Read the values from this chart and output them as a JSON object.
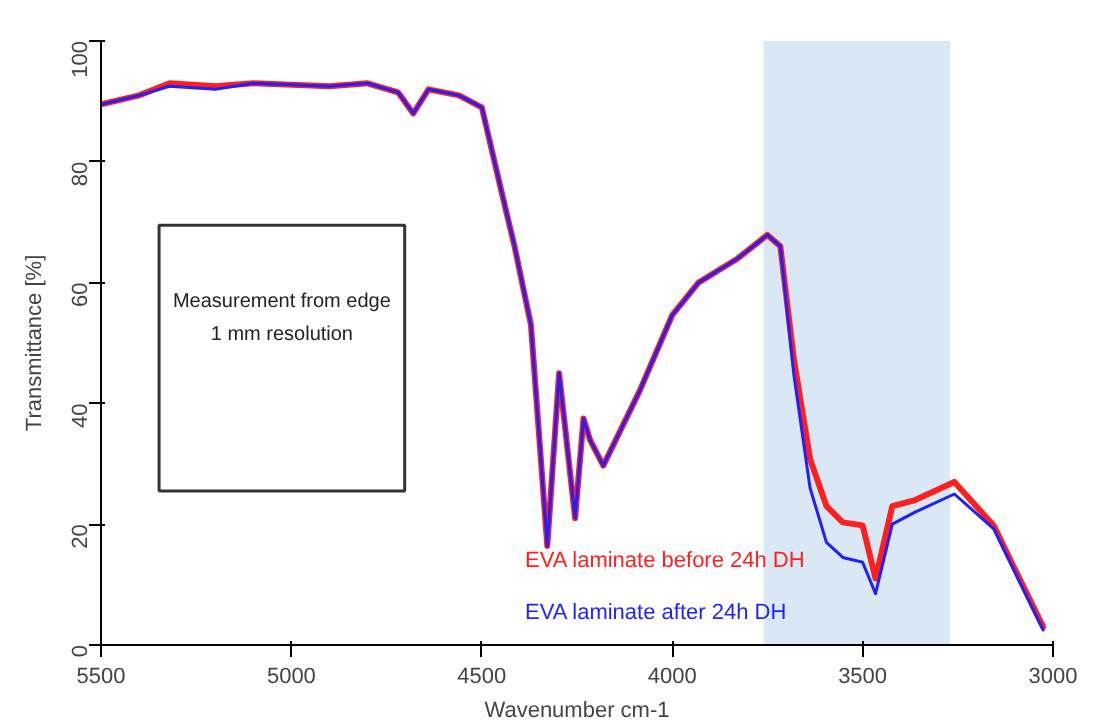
{
  "chart_data": {
    "type": "line",
    "xlabel": "Wavenumber cm-1",
    "ylabel": "Transmittance [%]",
    "xlim": [
      5500,
      3000
    ],
    "ylim": [
      0,
      100
    ],
    "xticks": [
      5500,
      5000,
      4500,
      4000,
      3500,
      3000
    ],
    "yticks": [
      0,
      20,
      40,
      60,
      80,
      100
    ],
    "grid": false,
    "marker": "none",
    "line_style": "solid",
    "annotations": [
      "Measurement from edge\n1 mm resolution"
    ],
    "bands": [
      {
        "axis": "x",
        "from": 3760,
        "to": 3270,
        "color": "#dae8f5"
      }
    ],
    "x": [
      5500,
      5400,
      5320,
      5200,
      5100,
      4900,
      4800,
      4720,
      4680,
      4640,
      4560,
      4500,
      4448,
      4414,
      4371,
      4328,
      4297,
      4255,
      4233,
      4216,
      4181,
      4086,
      4000,
      3931,
      3828,
      3750,
      3716,
      3681,
      3638,
      3595,
      3552,
      3500,
      3466,
      3422,
      3362,
      3259,
      3155,
      3078,
      3026
    ],
    "series": [
      {
        "name": "EVA laminate  after 24h DH",
        "color": "#1f1fff",
        "values": [
          89.5,
          91,
          92.5,
          92,
          93,
          92.5,
          93,
          91.5,
          88,
          92,
          91,
          89,
          75,
          66,
          53,
          16.4,
          45,
          21,
          37.5,
          34,
          29.7,
          42,
          54.6,
          60,
          64,
          67.9,
          66,
          45,
          26,
          17,
          14.5,
          13.7,
          8.5,
          20,
          22,
          25,
          19.2,
          9.2,
          2.5
        ]
      },
      {
        "name": "EVA laminate before 24h DH",
        "color": "#ff1f1f",
        "values": [
          89.5,
          91,
          93,
          92.5,
          93,
          92.5,
          93,
          91.5,
          88,
          92,
          91,
          89,
          75,
          66,
          53,
          16.4,
          45,
          21,
          37.5,
          34,
          29.7,
          42,
          54.6,
          60,
          64,
          67.9,
          66,
          47.5,
          30.8,
          23,
          20.3,
          19.8,
          11,
          23,
          24,
          27,
          19.7,
          9.7,
          3
        ]
      }
    ]
  }
}
